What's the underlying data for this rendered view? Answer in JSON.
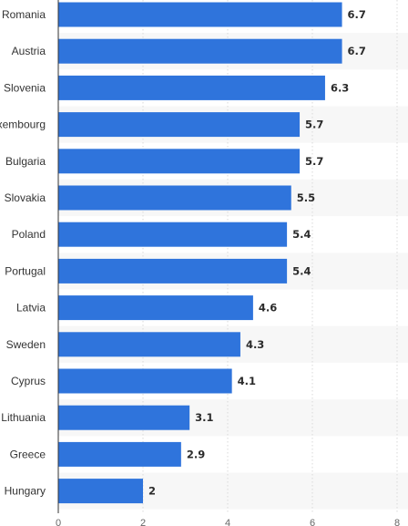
{
  "chart_data": {
    "type": "bar",
    "orientation": "horizontal",
    "categories": [
      "Romania",
      "Austria",
      "Slovenia",
      "Luxembourg",
      "Bulgaria",
      "Slovakia",
      "Poland",
      "Portugal",
      "Latvia",
      "Sweden",
      "Cyprus",
      "Lithuania",
      "Greece",
      "Hungary"
    ],
    "values": [
      6.7,
      6.7,
      6.3,
      5.7,
      5.7,
      5.5,
      5.4,
      5.4,
      4.6,
      4.3,
      4.1,
      3.1,
      2.9,
      2
    ],
    "value_labels": [
      "6.7",
      "6.7",
      "6.3",
      "5.7",
      "5.7",
      "5.5",
      "5.4",
      "5.4",
      "4.6",
      "4.3",
      "4.1",
      "3.1",
      "2.9",
      "2"
    ],
    "xticks": [
      0,
      2,
      4,
      6,
      8
    ],
    "xlim": [
      0,
      8
    ],
    "title": "",
    "xlabel": "",
    "ylabel": "",
    "grid": true,
    "colors": {
      "bar": "#2f74dc",
      "band": "#f7f7f7",
      "grid": "#d9d9d9",
      "axis": "#333333"
    }
  }
}
